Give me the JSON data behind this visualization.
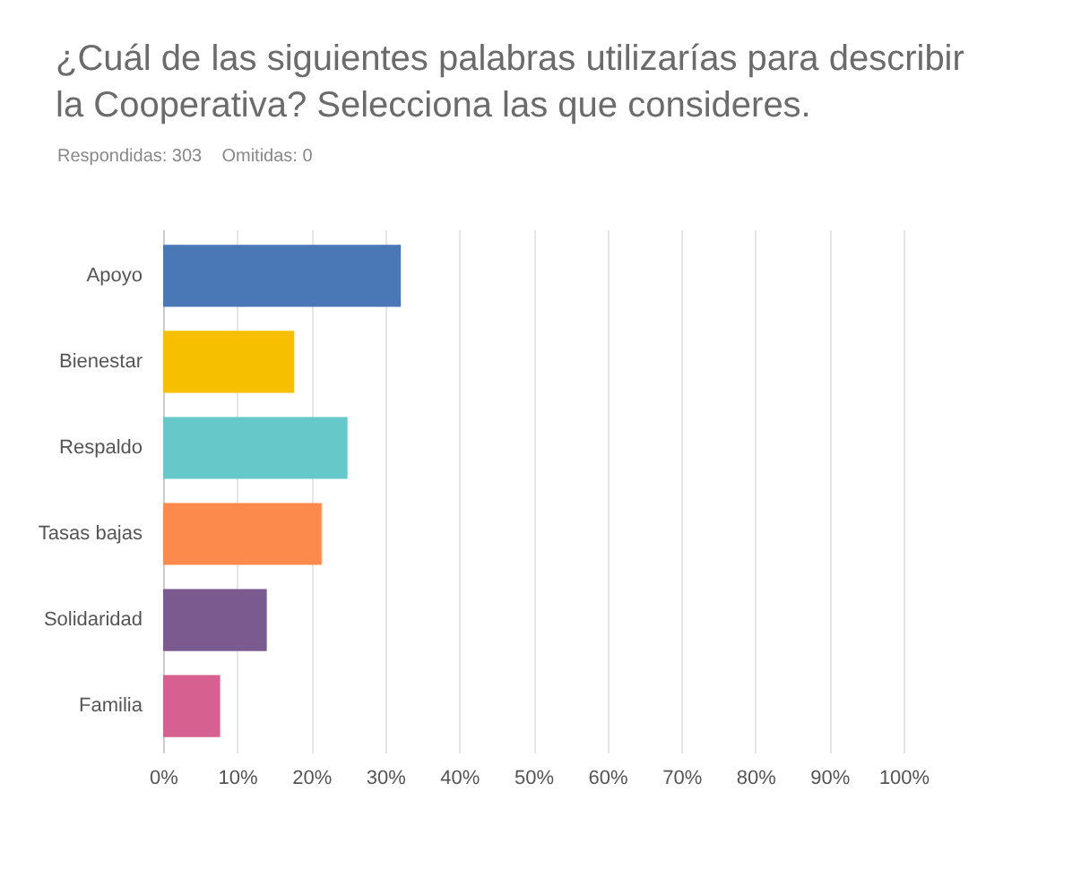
{
  "chart_data": {
    "type": "bar",
    "orientation": "horizontal",
    "title": "¿Cuál de las siguientes palabras utilizarías para describir la Cooperativa? Selecciona las que consideres.",
    "subtitle": "Respondidas: 303    Omitidas: 0",
    "categories": [
      "Apoyo",
      "Bienestar",
      "Respaldo",
      "Tasas bajas",
      "Solidaridad",
      "Familia"
    ],
    "values": [
      32.1,
      17.7,
      24.9,
      21.4,
      14.0,
      7.7
    ],
    "colors": [
      "#4a78b6",
      "#f6bf00",
      "#67c8ca",
      "#fd8a4d",
      "#7b5b8f",
      "#d6608f"
    ],
    "xlim": [
      0,
      100
    ],
    "xticks": [
      {
        "value": 0,
        "label": "0%"
      },
      {
        "value": 10,
        "label": "10%"
      },
      {
        "value": 20,
        "label": "20%"
      },
      {
        "value": 30,
        "label": "30%"
      },
      {
        "value": 40,
        "label": "40%"
      },
      {
        "value": 50,
        "label": "50%"
      },
      {
        "value": 60,
        "label": "60%"
      },
      {
        "value": 70,
        "label": "70%"
      },
      {
        "value": 80,
        "label": "80%"
      },
      {
        "value": 90,
        "label": "90%"
      },
      {
        "value": 100,
        "label": "100%"
      }
    ],
    "grid": "x"
  }
}
